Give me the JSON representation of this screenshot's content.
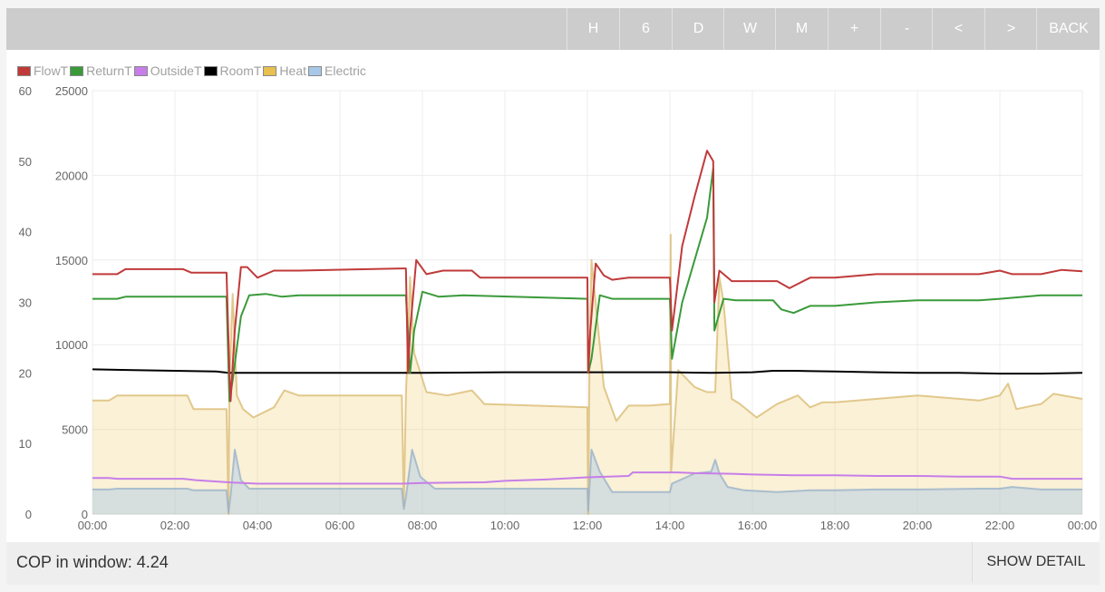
{
  "toolbar": {
    "buttons": [
      "H",
      "6",
      "D",
      "W",
      "M",
      "+",
      "-",
      "<",
      ">",
      "BACK"
    ]
  },
  "colors": {
    "FlowT": "#c03a3a",
    "ReturnT": "#3a9a3a",
    "OutsideT": "#c77ee8",
    "RoomT": "#000000",
    "Heat": "#e8c050",
    "Electric": "#a8c8e8"
  },
  "footer": {
    "cop_label": "COP in window: 4.24",
    "detail_button": "SHOW DETAIL"
  },
  "chart_data": {
    "type": "line",
    "legend": [
      "FlowT",
      "ReturnT",
      "OutsideT",
      "RoomT",
      "Heat",
      "Electric"
    ],
    "legend_position": "top-left",
    "grid": true,
    "x_unit": "hours",
    "xlim": [
      0,
      24
    ],
    "x_ticks": [
      "00:00",
      "02:00",
      "04:00",
      "06:00",
      "08:00",
      "10:00",
      "12:00",
      "14:00",
      "16:00",
      "18:00",
      "20:00",
      "22:00",
      "00:00"
    ],
    "y_left": {
      "ylim": [
        0,
        60
      ],
      "ticks": [
        "0",
        "10",
        "20",
        "30",
        "40",
        "50",
        "60"
      ]
    },
    "y_right": {
      "ylim": [
        0,
        25000
      ],
      "ticks": [
        "0",
        "5000",
        "10000",
        "15000",
        "20000",
        "25000"
      ]
    },
    "series": [
      {
        "name": "FlowT",
        "axis": "left",
        "x": [
          0,
          0.6,
          0.8,
          2.2,
          2.4,
          3.25,
          3.32,
          3.35,
          3.45,
          3.6,
          3.75,
          4,
          4.4,
          5,
          7.5,
          7.6,
          7.65,
          7.7,
          7.85,
          8.1,
          8.5,
          9.2,
          9.4,
          12,
          12.02,
          12.07,
          12.2,
          12.4,
          12.6,
          13,
          14,
          14.05,
          14.3,
          14.6,
          14.9,
          15.05,
          15.08,
          15.2,
          15.5,
          16,
          16.6,
          16.9,
          17.4,
          18,
          19,
          20,
          21.5,
          22,
          22.3,
          23,
          23.5,
          24
        ],
        "y": [
          34,
          34,
          34.7,
          34.7,
          34.2,
          34.2,
          20,
          16,
          26,
          35,
          35,
          33.5,
          34.5,
          34.5,
          34.8,
          34.8,
          20,
          26,
          36,
          34,
          34.5,
          34.5,
          33.5,
          33.5,
          20,
          26,
          35.5,
          33.8,
          33.2,
          33.5,
          33.5,
          26,
          38,
          45,
          51.5,
          50,
          30,
          34.5,
          33,
          33,
          33,
          32,
          33.5,
          33.5,
          34,
          34,
          34,
          34.5,
          34,
          34,
          34.6,
          34.4
        ]
      },
      {
        "name": "ReturnT",
        "axis": "left",
        "x": [
          0,
          0.6,
          0.8,
          2.2,
          2.4,
          3.25,
          3.32,
          3.4,
          3.6,
          3.8,
          4.2,
          4.6,
          5,
          7.5,
          7.6,
          7.7,
          7.8,
          8,
          8.4,
          9,
          12,
          12.02,
          12.1,
          12.3,
          12.6,
          13,
          14,
          14.05,
          14.3,
          14.6,
          14.9,
          15.05,
          15.08,
          15.3,
          15.6,
          16,
          16.5,
          16.7,
          17,
          17.4,
          18,
          19,
          20,
          21.5,
          22,
          23,
          23.5,
          24
        ],
        "y": [
          30.5,
          30.5,
          30.8,
          30.8,
          30.8,
          30.8,
          16,
          19,
          28,
          31,
          31.2,
          30.8,
          31,
          31,
          31,
          20,
          26,
          31.5,
          30.8,
          31,
          30.5,
          20,
          22,
          31,
          30.5,
          30.5,
          30.5,
          22,
          30,
          36,
          42,
          49,
          26,
          30.5,
          30.3,
          30.3,
          30.3,
          29,
          28.5,
          29.5,
          29.5,
          30,
          30.3,
          30.3,
          30.5,
          31,
          31,
          31
        ]
      },
      {
        "name": "OutsideT",
        "axis": "left",
        "x": [
          0,
          0.4,
          0.6,
          2.2,
          2.5,
          3.3,
          4,
          6,
          7.5,
          8,
          9.5,
          10,
          11,
          12,
          13,
          13.1,
          14.2,
          14.6,
          15.5,
          16,
          17,
          18,
          19,
          20,
          21,
          22,
          22.3,
          24
        ],
        "y": [
          5.1,
          5.1,
          5,
          5,
          4.8,
          4.5,
          4.3,
          4.3,
          4.3,
          4.4,
          4.5,
          4.7,
          4.9,
          5.2,
          5.4,
          5.9,
          5.9,
          5.8,
          5.7,
          5.6,
          5.5,
          5.5,
          5.4,
          5.4,
          5.3,
          5.3,
          5,
          5
        ]
      },
      {
        "name": "RoomT",
        "axis": "left",
        "x": [
          0,
          1,
          2,
          3,
          3.3,
          4,
          6,
          8,
          10,
          12,
          13,
          14,
          15,
          16,
          16.5,
          17,
          18,
          19,
          20,
          21,
          22,
          23,
          24
        ],
        "y": [
          20.5,
          20.4,
          20.3,
          20.2,
          20,
          20,
          20,
          20,
          20.1,
          20.1,
          20.1,
          20.1,
          20,
          20.1,
          20.3,
          20.3,
          20.2,
          20.1,
          20,
          20,
          19.9,
          19.9,
          20
        ]
      },
      {
        "name": "Heat",
        "axis": "right",
        "x": [
          0,
          0.4,
          0.6,
          2.3,
          2.45,
          3.25,
          3.3,
          3.32,
          3.4,
          3.5,
          3.65,
          3.9,
          4.4,
          4.65,
          5,
          7.5,
          7.55,
          7.6,
          7.7,
          7.8,
          8.1,
          8.6,
          9.2,
          9.5,
          12,
          12.02,
          12.05,
          12.1,
          12.4,
          12.7,
          13,
          13.5,
          14,
          14.02,
          14.03,
          14.2,
          14.6,
          14.9,
          15.1,
          15.2,
          15.3,
          15.5,
          15.7,
          16.1,
          16.6,
          17.1,
          17.4,
          17.7,
          18,
          19,
          20,
          21.5,
          22,
          22.2,
          22.4,
          23,
          23.3,
          24
        ],
        "y": [
          6700,
          6700,
          7000,
          7000,
          6200,
          6200,
          0,
          8000,
          13000,
          7000,
          6200,
          5700,
          6300,
          7300,
          7000,
          7000,
          500,
          7000,
          14000,
          9500,
          7200,
          7000,
          7300,
          6500,
          6300,
          0,
          9000,
          15000,
          7500,
          5500,
          6400,
          6400,
          6500,
          16500,
          2500,
          8500,
          7500,
          7200,
          7200,
          14000,
          12500,
          6800,
          6500,
          5700,
          6500,
          7000,
          6300,
          6600,
          6600,
          6800,
          7000,
          6700,
          7000,
          7700,
          6200,
          6500,
          7100,
          6800
        ]
      },
      {
        "name": "Electric",
        "axis": "right",
        "x": [
          0,
          0.4,
          0.6,
          2.3,
          2.45,
          3.25,
          3.3,
          3.35,
          3.45,
          3.6,
          3.8,
          4.5,
          5,
          7.5,
          7.55,
          7.6,
          7.75,
          7.95,
          8.3,
          9,
          12,
          12.02,
          12.1,
          12.3,
          12.6,
          13,
          13.5,
          14,
          14.05,
          14.6,
          15,
          15.1,
          15.2,
          15.4,
          15.8,
          16.6,
          17.4,
          18,
          19,
          20,
          21.5,
          22,
          22.3,
          23,
          24
        ],
        "y": [
          1450,
          1450,
          1500,
          1500,
          1400,
          1400,
          100,
          1100,
          3800,
          2000,
          1500,
          1500,
          1500,
          1500,
          300,
          1000,
          3800,
          2200,
          1500,
          1500,
          1500,
          200,
          3800,
          2500,
          1300,
          1300,
          1300,
          1300,
          1800,
          2400,
          2500,
          3200,
          2400,
          1600,
          1400,
          1300,
          1400,
          1400,
          1450,
          1450,
          1500,
          1500,
          1600,
          1450,
          1450
        ]
      }
    ]
  }
}
